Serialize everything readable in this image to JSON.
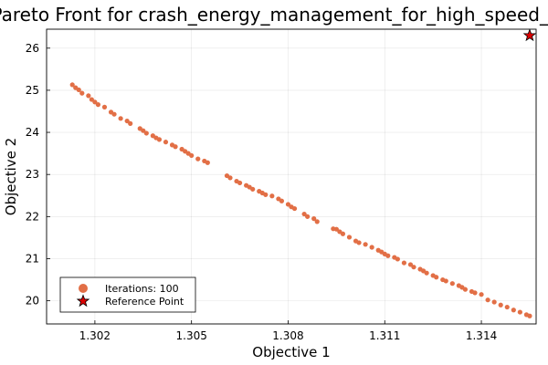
{
  "chart_data": {
    "type": "scatter",
    "title": "Pareto Front for crash_energy_management_for_high_speed_train",
    "xlabel": "Objective 1",
    "ylabel": "Objective 2",
    "xlim": [
      1.3005,
      1.3157
    ],
    "ylim": [
      19.45,
      26.45
    ],
    "x_ticks": [
      "1.302",
      "1.305",
      "1.308",
      "1.311",
      "1.314"
    ],
    "x_tick_values": [
      1.302,
      1.305,
      1.308,
      1.311,
      1.314
    ],
    "y_ticks": [
      "20",
      "21",
      "22",
      "23",
      "24",
      "25",
      "26"
    ],
    "y_tick_values": [
      20,
      21,
      22,
      23,
      24,
      25,
      26
    ],
    "grid": true,
    "legend_position": "bottom-left",
    "series": [
      {
        "name": "Iterations: 100",
        "marker": "circle",
        "color": "#e26f46",
        "points": [
          [
            1.3013,
            25.13
          ],
          [
            1.3014,
            25.06
          ],
          [
            1.3015,
            25.01
          ],
          [
            1.3016,
            24.93
          ],
          [
            1.3018,
            24.87
          ],
          [
            1.3019,
            24.78
          ],
          [
            1.302,
            24.72
          ],
          [
            1.3021,
            24.66
          ],
          [
            1.3023,
            24.6
          ],
          [
            1.3025,
            24.48
          ],
          [
            1.3026,
            24.43
          ],
          [
            1.3028,
            24.33
          ],
          [
            1.303,
            24.27
          ],
          [
            1.3031,
            24.21
          ],
          [
            1.3034,
            24.09
          ],
          [
            1.3035,
            24.04
          ],
          [
            1.3036,
            23.98
          ],
          [
            1.3038,
            23.92
          ],
          [
            1.3039,
            23.87
          ],
          [
            1.304,
            23.83
          ],
          [
            1.3042,
            23.77
          ],
          [
            1.3044,
            23.7
          ],
          [
            1.3045,
            23.66
          ],
          [
            1.3047,
            23.6
          ],
          [
            1.3048,
            23.55
          ],
          [
            1.3049,
            23.5
          ],
          [
            1.305,
            23.45
          ],
          [
            1.3052,
            23.37
          ],
          [
            1.3054,
            23.32
          ],
          [
            1.3055,
            23.28
          ],
          [
            1.3061,
            22.97
          ],
          [
            1.3062,
            22.92
          ],
          [
            1.3064,
            22.84
          ],
          [
            1.3065,
            22.8
          ],
          [
            1.3067,
            22.74
          ],
          [
            1.3068,
            22.7
          ],
          [
            1.3069,
            22.65
          ],
          [
            1.3071,
            22.6
          ],
          [
            1.3072,
            22.56
          ],
          [
            1.3073,
            22.52
          ],
          [
            1.3075,
            22.49
          ],
          [
            1.3077,
            22.42
          ],
          [
            1.3078,
            22.37
          ],
          [
            1.308,
            22.29
          ],
          [
            1.3081,
            22.23
          ],
          [
            1.3082,
            22.19
          ],
          [
            1.3085,
            22.06
          ],
          [
            1.3086,
            22.0
          ],
          [
            1.3088,
            21.95
          ],
          [
            1.3089,
            21.88
          ],
          [
            1.3094,
            21.71
          ],
          [
            1.3095,
            21.7
          ],
          [
            1.3096,
            21.64
          ],
          [
            1.3097,
            21.59
          ],
          [
            1.3099,
            21.51
          ],
          [
            1.3101,
            21.42
          ],
          [
            1.3102,
            21.38
          ],
          [
            1.3104,
            21.34
          ],
          [
            1.3106,
            21.27
          ],
          [
            1.3108,
            21.2
          ],
          [
            1.3109,
            21.16
          ],
          [
            1.311,
            21.11
          ],
          [
            1.3111,
            21.07
          ],
          [
            1.3113,
            21.03
          ],
          [
            1.3114,
            20.99
          ],
          [
            1.3116,
            20.9
          ],
          [
            1.3118,
            20.86
          ],
          [
            1.3119,
            20.8
          ],
          [
            1.3121,
            20.75
          ],
          [
            1.3122,
            20.71
          ],
          [
            1.3123,
            20.66
          ],
          [
            1.3125,
            20.6
          ],
          [
            1.3126,
            20.56
          ],
          [
            1.3128,
            20.5
          ],
          [
            1.3129,
            20.47
          ],
          [
            1.3131,
            20.41
          ],
          [
            1.3133,
            20.36
          ],
          [
            1.3134,
            20.32
          ],
          [
            1.3135,
            20.27
          ],
          [
            1.3137,
            20.22
          ],
          [
            1.3138,
            20.19
          ],
          [
            1.314,
            20.15
          ],
          [
            1.3142,
            20.02
          ],
          [
            1.3144,
            19.97
          ],
          [
            1.3146,
            19.9
          ],
          [
            1.3148,
            19.85
          ],
          [
            1.315,
            19.78
          ],
          [
            1.3152,
            19.73
          ],
          [
            1.3154,
            19.67
          ],
          [
            1.3155,
            19.64
          ]
        ]
      },
      {
        "name": "Reference Point",
        "marker": "star",
        "color": "#dd0000",
        "points": [
          [
            1.3155,
            26.3
          ]
        ]
      }
    ]
  }
}
